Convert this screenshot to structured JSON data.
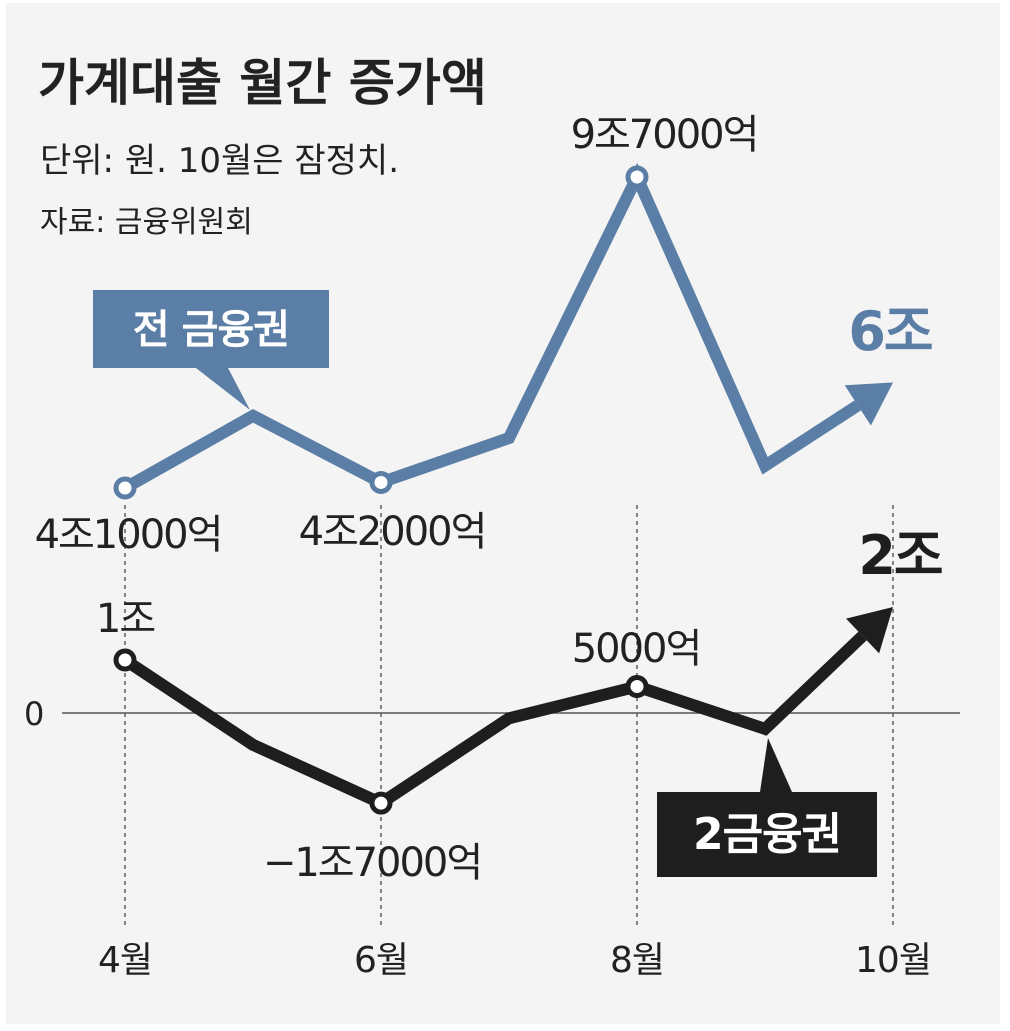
{
  "title": "가계대출 월간 증가액",
  "unit_note": "단위: 원. 10월은 잠정치.",
  "source_note": "자료: 금융위원회",
  "colors": {
    "background": "#f4f4f4",
    "blue": "#5a7ea6",
    "blue_label_text": "#ffffff",
    "black": "#1e1e1e",
    "text": "#222222",
    "grid": "#555555"
  },
  "chart_data": {
    "type": "line",
    "title": "가계대출 월간 증가액",
    "xlabel": "",
    "ylabel": "",
    "unit": "원",
    "note": "10월은 잠정치",
    "x": [
      4,
      5,
      6,
      7,
      8,
      9,
      10
    ],
    "x_tick_labels": [
      {
        "x": 4,
        "label": "4월"
      },
      {
        "x": 6,
        "label": "6월"
      },
      {
        "x": 8,
        "label": "8월"
      },
      {
        "x": 10,
        "label": "10월"
      }
    ],
    "y_unit": "조 원",
    "ylim": [
      -2.2,
      10.5
    ],
    "zero_label": "0",
    "series": [
      {
        "name": "전 금융권",
        "values": [
          4.1,
          5.4,
          4.2,
          5.0,
          9.7,
          4.5,
          6.0
        ],
        "point_labels": [
          {
            "x": 4,
            "label": "4조1000억"
          },
          {
            "x": 6,
            "label": "4조2000억"
          },
          {
            "x": 8,
            "label": "9조7000억"
          },
          {
            "x": 10,
            "label": "6조"
          }
        ]
      },
      {
        "name": "2금융권",
        "values": [
          1.0,
          -0.6,
          -1.7,
          -0.1,
          0.5,
          -0.3,
          2.0
        ],
        "point_labels": [
          {
            "x": 4,
            "label": "1조"
          },
          {
            "x": 6,
            "label": "−1조7000억"
          },
          {
            "x": 8,
            "label": "5000억"
          },
          {
            "x": 10,
            "label": "2조"
          }
        ]
      }
    ]
  }
}
